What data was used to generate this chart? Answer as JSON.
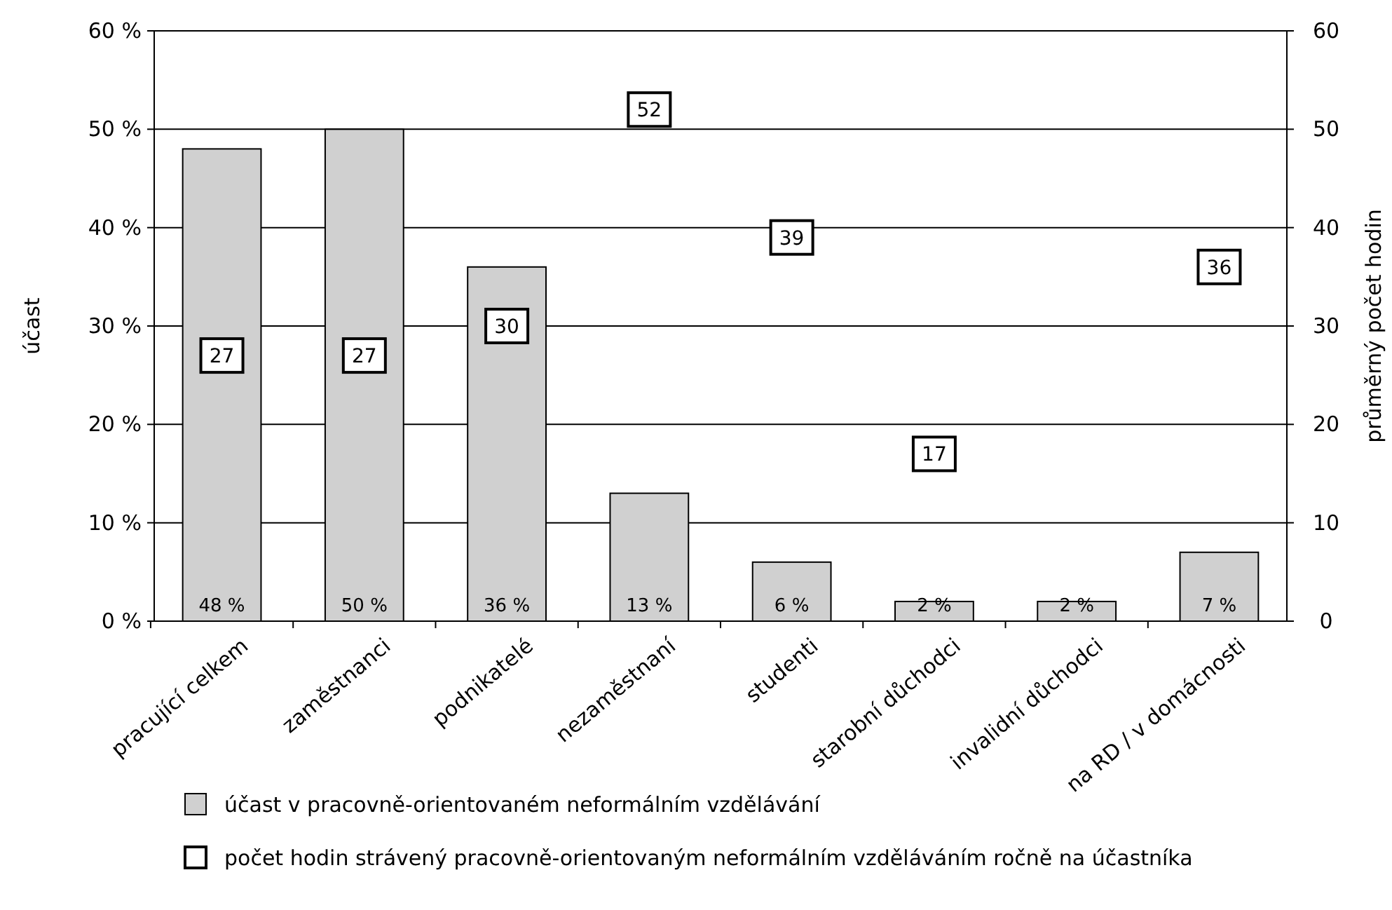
{
  "chart_data": {
    "type": "bar",
    "ylabel": "účast",
    "y2label": "průměrný počet hodin",
    "categories": [
      "pracující celkem",
      "zaměstnanci",
      "podnikatelé",
      "nezaměstnaní",
      "studenti",
      "starobní důchodci",
      "invalidní důchodci",
      "na RD / v domácnosti"
    ],
    "series": [
      {
        "name": "účast v pracovně-orientovaném neformálním vzdělávání",
        "color": "#d0d0d0",
        "values": [
          48,
          50,
          36,
          13,
          6,
          2,
          2,
          7
        ],
        "value_labels": [
          "48 %",
          "50 %",
          "36 %",
          "13 %",
          "6 %",
          "2 %",
          "2 %",
          "7 %"
        ]
      },
      {
        "name": "počet hodin strávený pracovně-orientovaným neformálním vzděláváním ročně na účastníka",
        "type": "scatter",
        "axis": "y2",
        "marker": "square",
        "color": "#ffffff",
        "values": [
          27,
          27,
          30,
          52,
          39,
          17,
          null,
          36
        ],
        "value_labels": [
          "27",
          "27",
          "30",
          "52",
          "39",
          "17",
          null,
          "36"
        ]
      }
    ],
    "ylim": [
      0,
      60
    ],
    "yticks": [
      {
        "value": 0,
        "label": "0 %"
      },
      {
        "value": 10,
        "label": "10 %"
      },
      {
        "value": 20,
        "label": "20 %"
      },
      {
        "value": 30,
        "label": "30 %"
      },
      {
        "value": 40,
        "label": "40 %"
      },
      {
        "value": 50,
        "label": "50 %"
      },
      {
        "value": 60,
        "label": "60 %"
      }
    ],
    "y2lim": [
      0,
      60
    ],
    "y2ticks": [
      0,
      10,
      20,
      30,
      40,
      50,
      60
    ],
    "grid": "y",
    "legend": "bottom"
  }
}
